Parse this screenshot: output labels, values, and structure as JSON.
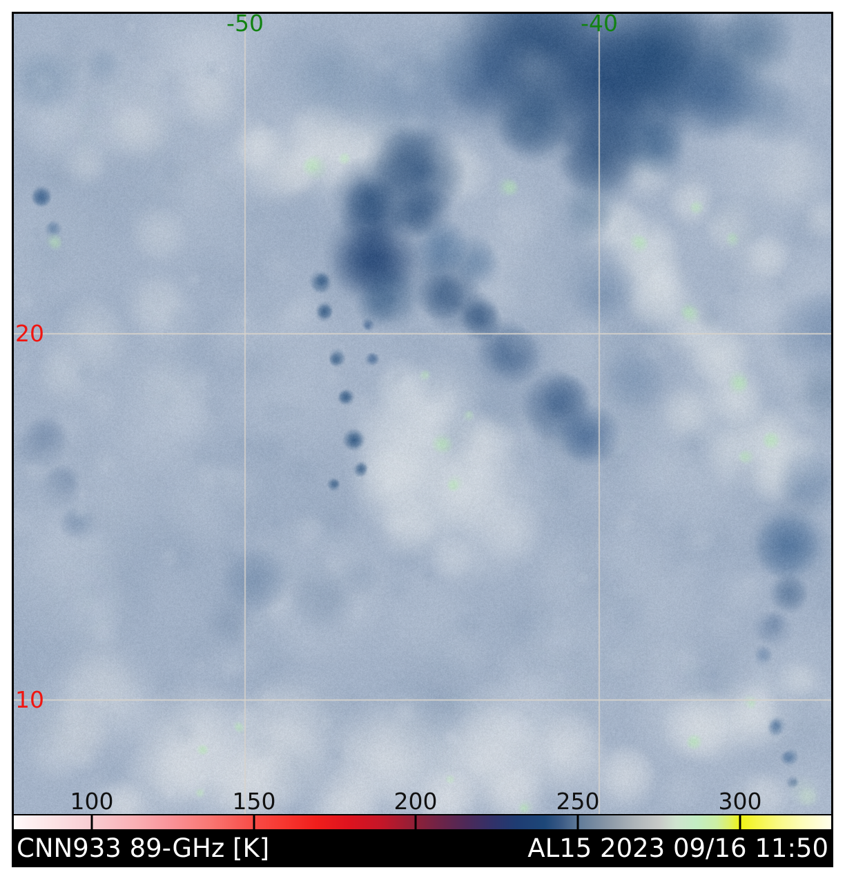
{
  "figure": {
    "axis_labels": {
      "top": [
        {
          "text": "-50"
        },
        {
          "text": "-40"
        }
      ],
      "left": [
        {
          "text": "20"
        },
        {
          "text": "10"
        }
      ]
    },
    "colorbar": {
      "tick_labels": [
        "100",
        "150",
        "200",
        "250",
        "300"
      ],
      "unit": "K"
    },
    "caption": {
      "left": "CNN933 89-GHz [K]",
      "right": "AL15 2023 09/16 11:50"
    }
  },
  "colors": {
    "lon_label": "#128212",
    "lat_label": "#f01510",
    "tick_label": "#111111",
    "caption_bg": "#000000",
    "caption_fg": "#ffffff",
    "gridline": "rgba(215,211,203,0.9)",
    "sea_base": "#a4b3c8",
    "deep_convection": "#1a4170",
    "warm_cloud_green": "#b5e9b2"
  },
  "chart_data": {
    "type": "heatmap",
    "title": "CNN933 89-GHz [K]",
    "annotation": "AL15 2023 09/16 11:50",
    "storm_id": "AL15",
    "datetime_label": "2023 09/16 11:50",
    "variable": "89-GHz brightness temperature",
    "unit": "K",
    "colorbar_ticks": [
      100,
      150,
      200,
      250,
      300
    ],
    "colorbar_range_approx": [
      76,
      328
    ],
    "longitude_gridlines": [
      -50,
      -40
    ],
    "latitude_gridlines": [
      20,
      10
    ],
    "grid": "on",
    "legend_position": "bottom-colorbar",
    "colorbar_stops": [
      {
        "pos": 0,
        "color": "#fefbfb"
      },
      {
        "pos": 2,
        "color": "#fdeff0"
      },
      {
        "pos": 9.5,
        "color": "#f8ccd1"
      },
      {
        "pos": 15,
        "color": "#faafb4"
      },
      {
        "pos": 19,
        "color": "#fa949a"
      },
      {
        "pos": 24,
        "color": "#f97773"
      },
      {
        "pos": 29.4,
        "color": "#f84b46"
      },
      {
        "pos": 33,
        "color": "#f73730"
      },
      {
        "pos": 37,
        "color": "#f01e1c"
      },
      {
        "pos": 41,
        "color": "#de131e"
      },
      {
        "pos": 45,
        "color": "#c41628"
      },
      {
        "pos": 49.2,
        "color": "#8e2038"
      },
      {
        "pos": 52,
        "color": "#6f2347"
      },
      {
        "pos": 55.5,
        "color": "#4c2959"
      },
      {
        "pos": 58.5,
        "color": "#323169"
      },
      {
        "pos": 61.5,
        "color": "#1e3c72"
      },
      {
        "pos": 65,
        "color": "#1d4778"
      },
      {
        "pos": 67,
        "color": "#3b5a85"
      },
      {
        "pos": 69,
        "color": "#5f7a98"
      },
      {
        "pos": 72.5,
        "color": "#8896a6"
      },
      {
        "pos": 76,
        "color": "#aeb5ba"
      },
      {
        "pos": 79,
        "color": "#c7cac8"
      },
      {
        "pos": 81,
        "color": "#cfe3cf"
      },
      {
        "pos": 83.5,
        "color": "#c3edc4"
      },
      {
        "pos": 86,
        "color": "#ccefa4"
      },
      {
        "pos": 87.5,
        "color": "#ddf167"
      },
      {
        "pos": 88.85,
        "color": "#eef313"
      },
      {
        "pos": 90.5,
        "color": "#f5f53c"
      },
      {
        "pos": 93.5,
        "color": "#f9f983"
      },
      {
        "pos": 96.5,
        "color": "#fcfcba"
      },
      {
        "pos": 100,
        "color": "#fffeea"
      }
    ]
  }
}
